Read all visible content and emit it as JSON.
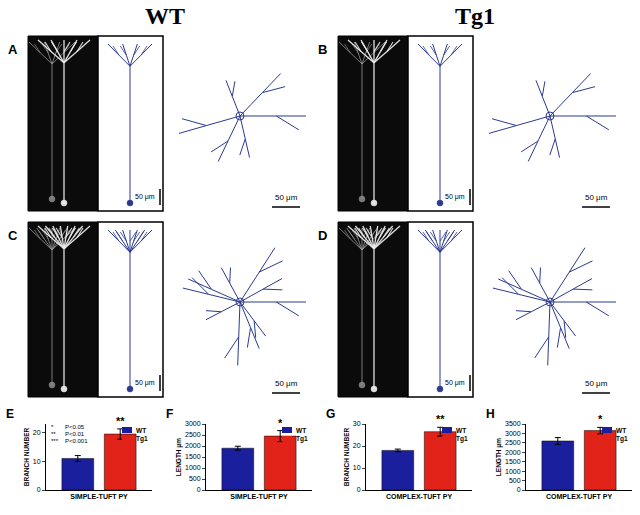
{
  "figure": {
    "headers": [
      "WT",
      "Tg1"
    ],
    "panels": [
      {
        "label": "A",
        "scale_bars": [
          "50 μm",
          "50 μm"
        ]
      },
      {
        "label": "B",
        "scale_bars": [
          "50 μm",
          "50 μm"
        ]
      },
      {
        "label": "C",
        "scale_bars": [
          "50 μm",
          "50 μm"
        ]
      },
      {
        "label": "D",
        "scale_bars": [
          "50 μm",
          "50 μm"
        ]
      }
    ]
  },
  "chart_data": [
    {
      "type": "bar",
      "title": "E",
      "categories": [
        "SIMPLE-TUFT PY"
      ],
      "y_label": "BRANCH NUMBER",
      "series": [
        {
          "name": "WT",
          "color": "#1a1f9e",
          "values": [
            11
          ],
          "errors": [
            1
          ]
        },
        {
          "name": "Tg1",
          "color": "#e2231a",
          "values": [
            19.5
          ],
          "errors": [
            1.8
          ]
        }
      ],
      "ylim": [
        0,
        23
      ],
      "yticks": [
        0,
        10,
        20
      ],
      "grid": false,
      "annotations": [
        {
          "text": "**",
          "series": "Tg1",
          "category": "SIMPLE-TUFT PY"
        }
      ],
      "significance_key": [
        [
          "*",
          "P<0.05"
        ],
        [
          "**",
          "P<0.01"
        ],
        [
          "***",
          "P<0.001"
        ]
      ]
    },
    {
      "type": "bar",
      "title": "F",
      "categories": [
        "SIMPLE-TUFT PY"
      ],
      "y_label": "LENGTH μm",
      "series": [
        {
          "name": "WT",
          "color": "#1a1f9e",
          "values": [
            1900
          ],
          "errors": [
            90
          ]
        },
        {
          "name": "Tg1",
          "color": "#e2231a",
          "values": [
            2450
          ],
          "errors": [
            250
          ]
        }
      ],
      "ylim": [
        0,
        3000
      ],
      "yticks": [
        0,
        500,
        1000,
        1500,
        2000,
        2500,
        3000
      ],
      "grid": false,
      "annotations": [
        {
          "text": "*",
          "series": "Tg1",
          "category": "SIMPLE-TUFT PY"
        }
      ]
    },
    {
      "type": "bar",
      "title": "G",
      "categories": [
        "COMPLEX-TUFT PY"
      ],
      "y_label": "BRANCH NUMBER",
      "series": [
        {
          "name": "WT",
          "color": "#1a1f9e",
          "values": [
            18
          ],
          "errors": [
            0.6
          ]
        },
        {
          "name": "Tg1",
          "color": "#e2231a",
          "values": [
            26.5
          ],
          "errors": [
            2
          ]
        }
      ],
      "ylim": [
        0,
        30
      ],
      "yticks": [
        0,
        10,
        20,
        30
      ],
      "grid": false,
      "annotations": [
        {
          "text": "**",
          "series": "Tg1",
          "category": "COMPLEX-TUFT PY"
        }
      ]
    },
    {
      "type": "bar",
      "title": "H",
      "categories": [
        "COMPLEX-TUFT PY"
      ],
      "y_label": "LENGTH μm",
      "series": [
        {
          "name": "WT",
          "color": "#1a1f9e",
          "values": [
            2600
          ],
          "errors": [
            180
          ]
        },
        {
          "name": "Tg1",
          "color": "#e2231a",
          "values": [
            3150
          ],
          "errors": [
            170
          ]
        }
      ],
      "ylim": [
        0,
        3500
      ],
      "yticks": [
        0,
        500,
        1000,
        1500,
        2000,
        2500,
        3000,
        3500
      ],
      "grid": false,
      "annotations": [
        {
          "text": "*",
          "series": "Tg1",
          "category": "COMPLEX-TUFT PY"
        }
      ]
    }
  ]
}
